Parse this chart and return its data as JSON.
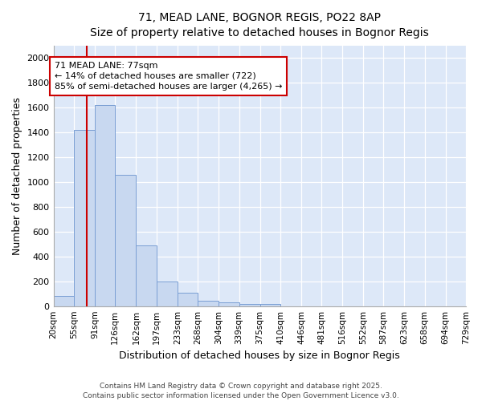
{
  "title1": "71, MEAD LANE, BOGNOR REGIS, PO22 8AP",
  "title2": "Size of property relative to detached houses in Bognor Regis",
  "xlabel": "Distribution of detached houses by size in Bognor Regis",
  "ylabel": "Number of detached properties",
  "bar_color": "#c8d8f0",
  "bar_edge_color": "#7a9fd4",
  "bins": [
    20,
    55,
    91,
    126,
    162,
    197,
    233,
    268,
    304,
    339,
    375,
    410,
    446,
    481,
    516,
    552,
    587,
    623,
    658,
    694,
    729
  ],
  "bin_labels": [
    "20sqm",
    "55sqm",
    "91sqm",
    "126sqm",
    "162sqm",
    "197sqm",
    "233sqm",
    "268sqm",
    "304sqm",
    "339sqm",
    "375sqm",
    "410sqm",
    "446sqm",
    "481sqm",
    "516sqm",
    "552sqm",
    "587sqm",
    "623sqm",
    "658sqm",
    "694sqm",
    "729sqm"
  ],
  "counts": [
    80,
    1420,
    1620,
    1055,
    490,
    200,
    105,
    40,
    28,
    20,
    15,
    0,
    0,
    0,
    0,
    0,
    0,
    0,
    0,
    0
  ],
  "property_size": 77,
  "vline_color": "#cc0000",
  "annotation_line1": "71 MEAD LANE: 77sqm",
  "annotation_line2": "← 14% of detached houses are smaller (722)",
  "annotation_line3": "85% of semi-detached houses are larger (4,265) →",
  "annotation_box_color": "#ffffff",
  "annotation_box_edge": "#cc0000",
  "ylim": [
    0,
    2100
  ],
  "yticks": [
    0,
    200,
    400,
    600,
    800,
    1000,
    1200,
    1400,
    1600,
    1800,
    2000
  ],
  "plot_bg_color": "#dde8f8",
  "fig_bg_color": "#ffffff",
  "grid_color": "#ffffff",
  "footer1": "Contains HM Land Registry data © Crown copyright and database right 2025.",
  "footer2": "Contains public sector information licensed under the Open Government Licence v3.0."
}
